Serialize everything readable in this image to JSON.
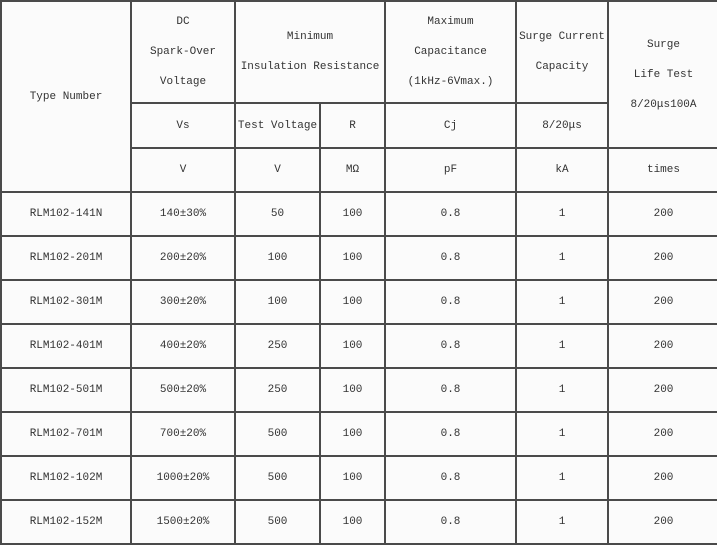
{
  "header": {
    "type_number": "Type Number",
    "dc_spark_over": [
      "DC",
      "Spark-Over",
      "Voltage"
    ],
    "min_insulation": [
      "Minimum",
      "Insulation Resistance"
    ],
    "max_capacitance": [
      "Maximum",
      "Capacitance",
      "(1kHz-6Vmax.)"
    ],
    "surge_current": [
      "Surge Current",
      "Capacity"
    ],
    "surge_life": [
      "Surge",
      "Life Test",
      "8/20μs100A"
    ],
    "sub": {
      "vs": "Vs",
      "test_voltage": "Test Voltage",
      "r": "R",
      "cj": "Cj",
      "surge_wave": "8/20μs"
    },
    "units": {
      "vs": "V",
      "test_voltage": "V",
      "r": "MΩ",
      "cj": "pF",
      "surge": "kA",
      "life": "times"
    }
  },
  "rows": [
    [
      "RLM102-141N",
      "140±30%",
      "50",
      "100",
      "0.8",
      "1",
      "200"
    ],
    [
      "RLM102-201M",
      "200±20%",
      "100",
      "100",
      "0.8",
      "1",
      "200"
    ],
    [
      "RLM102-301M",
      "300±20%",
      "100",
      "100",
      "0.8",
      "1",
      "200"
    ],
    [
      "RLM102-401M",
      "400±20%",
      "250",
      "100",
      "0.8",
      "1",
      "200"
    ],
    [
      "RLM102-501M",
      "500±20%",
      "250",
      "100",
      "0.8",
      "1",
      "200"
    ],
    [
      "RLM102-701M",
      "700±20%",
      "500",
      "100",
      "0.8",
      "1",
      "200"
    ],
    [
      "RLM102-102M",
      "1000±20%",
      "500",
      "100",
      "0.8",
      "1",
      "200"
    ],
    [
      "RLM102-152M",
      "1500±20%",
      "500",
      "100",
      "0.8",
      "1",
      "200"
    ]
  ]
}
